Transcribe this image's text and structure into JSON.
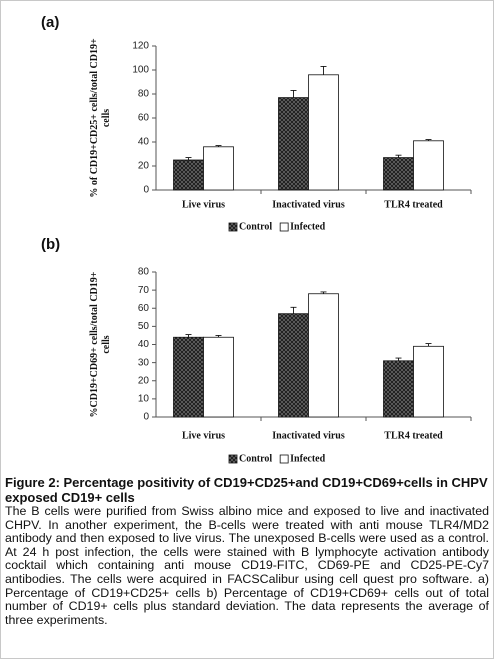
{
  "chart_data": [
    {
      "type": "bar",
      "panel": "(a)",
      "ylabel": "% of CD19+CD25+ cells/total CD19+ cells",
      "categories": [
        "Live virus",
        "Inactivated virus",
        "TLR4 treated"
      ],
      "series": [
        {
          "name": "Control",
          "color": "#222222",
          "values": [
            25,
            77,
            27
          ],
          "errors": [
            2,
            6,
            2
          ]
        },
        {
          "name": "Infected",
          "color": "#ffffff",
          "values": [
            36,
            96,
            41
          ],
          "errors": [
            1,
            7,
            1
          ]
        }
      ],
      "ylim": [
        0,
        120
      ],
      "yticks": [
        0,
        20,
        40,
        60,
        80,
        100,
        120
      ],
      "legend": "bottom"
    },
    {
      "type": "bar",
      "panel": "(b)",
      "ylabel": "%CD19+CD69+ cells/total CD19+ cells",
      "categories": [
        "Live virus",
        "Inactivated virus",
        "TLR4 treated"
      ],
      "series": [
        {
          "name": "Control",
          "color": "#222222",
          "values": [
            44,
            57,
            31
          ],
          "errors": [
            1.5,
            3.5,
            1.5
          ]
        },
        {
          "name": "Infected",
          "color": "#ffffff",
          "values": [
            44,
            68,
            39
          ],
          "errors": [
            1,
            1,
            1.5
          ]
        }
      ],
      "ylim": [
        0,
        80
      ],
      "yticks": [
        0,
        10,
        20,
        30,
        40,
        50,
        60,
        70,
        80
      ],
      "legend": "bottom"
    }
  ],
  "caption": {
    "title": "Figure 2: Percentage positivity of CD19+CD25+and CD19+CD69+cells in CHPV exposed CD19+ cells",
    "text": "The B cells were purified from Swiss albino mice and exposed to live and inactivated CHPV. In another experiment, the B-cells were treated with anti mouse TLR4/MD2 antibody and then exposed to live virus. The unexposed B-cells were used as a control. At 24 h post infection, the cells were stained with B lymphocyte activation antibody cocktail which containing anti mouse CD19-FITC, CD69-PE and CD25-PE-Cy7 antibodies. The cells were acquired in FACSCalibur using cell quest pro software.  a) Percentage of CD19+CD25+ cells b) Percentage of CD19+CD69+ cells out of total number of CD19+ cells plus standard deviation. The data represents the average of three experiments."
  }
}
